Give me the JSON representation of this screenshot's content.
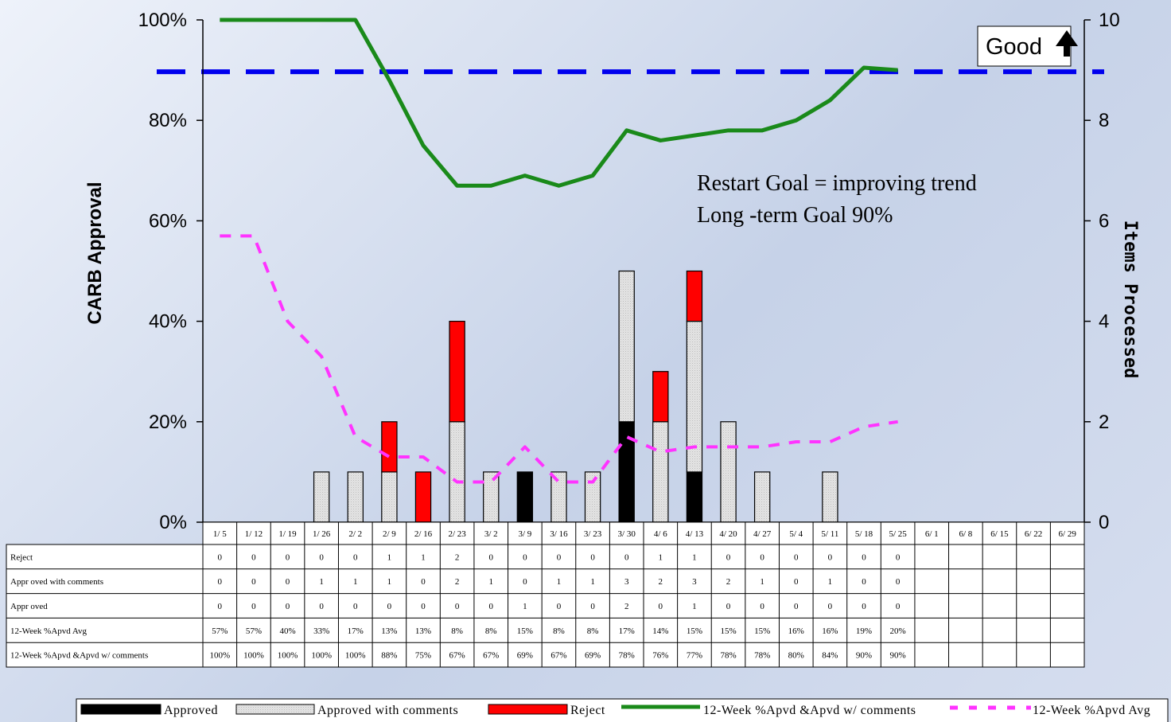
{
  "chart_data": {
    "type": "bar",
    "categories": [
      "1/ 5",
      "1/ 12",
      "1/ 19",
      "1/ 26",
      "2/ 2",
      "2/ 9",
      "2/ 16",
      "2/ 23",
      "3/ 2",
      "3/ 9",
      "3/ 16",
      "3/ 23",
      "3/ 30",
      "4/ 6",
      "4/ 13",
      "4/ 20",
      "4/ 27",
      "5/ 4",
      "5/ 11",
      "5/ 18",
      "5/ 25",
      "6/ 1",
      "6/ 8",
      "6/ 15",
      "6/ 22",
      "6/ 29"
    ],
    "ylabel_left": "CARB Approval",
    "ylabel_right": "Items Processed",
    "ylim_left": [
      0,
      1
    ],
    "ylim_right": [
      0,
      10
    ],
    "left_ticks": [
      "0%",
      "20%",
      "40%",
      "60%",
      "80%",
      "100%"
    ],
    "right_ticks": [
      "0",
      "2",
      "4",
      "6",
      "8",
      "10"
    ],
    "bar_series": [
      {
        "name": "Approved",
        "color": "#000000",
        "values": [
          0,
          0,
          0,
          0,
          0,
          0,
          0,
          0,
          0,
          1,
          0,
          0,
          2,
          0,
          1,
          0,
          0,
          0,
          0,
          0,
          0
        ]
      },
      {
        "name": "Approved with comments",
        "color": "#e2e2e2",
        "values": [
          0,
          0,
          0,
          1,
          1,
          1,
          0,
          2,
          1,
          0,
          1,
          1,
          3,
          2,
          3,
          2,
          1,
          0,
          1,
          0,
          0
        ]
      },
      {
        "name": "Reject",
        "color": "#ff0000",
        "values": [
          0,
          0,
          0,
          0,
          0,
          1,
          1,
          2,
          0,
          0,
          0,
          0,
          0,
          1,
          1,
          0,
          0,
          0,
          0,
          0,
          0
        ]
      }
    ],
    "line_series": [
      {
        "name": "12-Week %Apvd &Apvd w/ comments",
        "color": "#1a8a1a",
        "style": "solid",
        "values": [
          1.0,
          1.0,
          1.0,
          1.0,
          1.0,
          0.88,
          0.75,
          0.67,
          0.67,
          0.69,
          0.67,
          0.69,
          0.78,
          0.76,
          0.77,
          0.78,
          0.78,
          0.8,
          0.84,
          0.905,
          0.9
        ]
      },
      {
        "name": "12-Week %Apvd Avg",
        "color": "#ff33ff",
        "style": "dashed",
        "values": [
          0.57,
          0.57,
          0.4,
          0.33,
          0.17,
          0.13,
          0.13,
          0.08,
          0.08,
          0.15,
          0.08,
          0.08,
          0.17,
          0.14,
          0.15,
          0.15,
          0.15,
          0.16,
          0.16,
          0.19,
          0.2
        ]
      }
    ],
    "goal_line": {
      "value": 0.9,
      "color": "#0000ee",
      "style": "dashed"
    },
    "annotations": [
      "Restart Goal = improving trend",
      "Long -term Goal 90%"
    ],
    "good_label": "Good",
    "table": {
      "rows": [
        {
          "label": "Reject",
          "values": [
            "0",
            "0",
            "0",
            "0",
            "0",
            "1",
            "1",
            "2",
            "0",
            "0",
            "0",
            "0",
            "0",
            "1",
            "1",
            "0",
            "0",
            "0",
            "0",
            "0",
            "0",
            "",
            "",
            "",
            "",
            ""
          ]
        },
        {
          "label": "Appr oved with comments",
          "values": [
            "0",
            "0",
            "0",
            "1",
            "1",
            "1",
            "0",
            "2",
            "1",
            "0",
            "1",
            "1",
            "3",
            "2",
            "3",
            "2",
            "1",
            "0",
            "1",
            "0",
            "0",
            "",
            "",
            "",
            "",
            ""
          ]
        },
        {
          "label": "Appr oved",
          "values": [
            "0",
            "0",
            "0",
            "0",
            "0",
            "0",
            "0",
            "0",
            "0",
            "1",
            "0",
            "0",
            "2",
            "0",
            "1",
            "0",
            "0",
            "0",
            "0",
            "0",
            "0",
            "",
            "",
            "",
            "",
            ""
          ]
        },
        {
          "label": "12-Week %Apvd Avg",
          "values": [
            "57%",
            "57%",
            "40%",
            "33%",
            "17%",
            "13%",
            "13%",
            "8%",
            "8%",
            "15%",
            "8%",
            "8%",
            "17%",
            "14%",
            "15%",
            "15%",
            "15%",
            "16%",
            "16%",
            "19%",
            "20%",
            "",
            "",
            "",
            "",
            ""
          ]
        },
        {
          "label": "12-Week %Apvd &Apvd w/ comments",
          "values": [
            "100%",
            "100%",
            "100%",
            "100%",
            "100%",
            "88%",
            "75%",
            "67%",
            "67%",
            "69%",
            "67%",
            "69%",
            "78%",
            "76%",
            "77%",
            "78%",
            "78%",
            "80%",
            "84%",
            "90%",
            "90%",
            "",
            "",
            "",
            "",
            ""
          ]
        }
      ]
    },
    "legend": [
      "Approved",
      "Approved with comments",
      "Reject",
      "12-Week %Apvd &Apvd w/ comments",
      "12-Week %Apvd Avg"
    ]
  }
}
